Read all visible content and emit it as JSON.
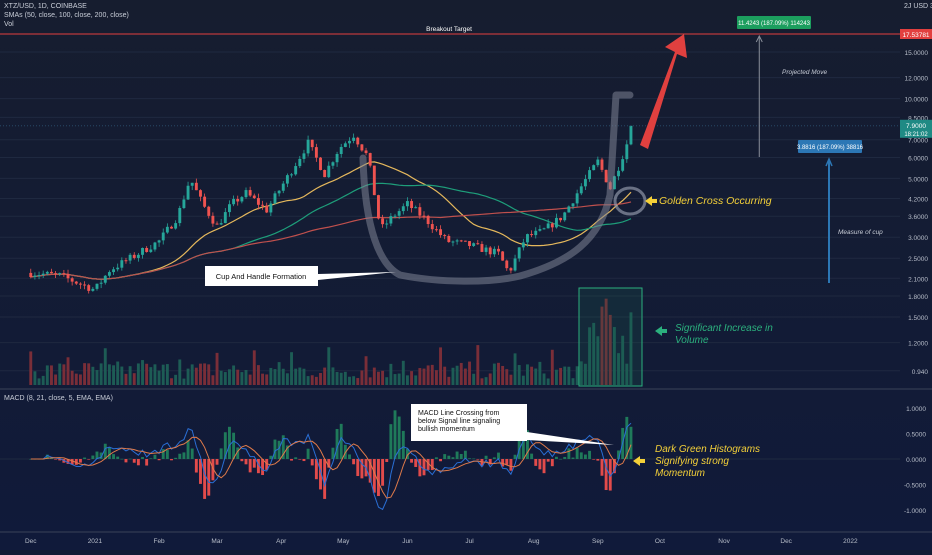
{
  "header": {
    "symbol_line": "XTZ/USD, 1D, COINBASE",
    "sma_line": "SMAs (50, close, 100, close, 200, close)",
    "vol_line": "Vol",
    "corner_label": "2J USD 3"
  },
  "macd_header": "MACD (8, 21, close, 5, EMA, EMA)",
  "chart_data": {
    "type": "candlestick",
    "price_axis": {
      "scale": "log",
      "ticks": [
        "15.0000",
        "12.0000",
        "10.0000",
        "8.5000",
        "7.0000",
        "6.0000",
        "5.0000",
        "4.2000",
        "3.6000",
        "3.0000",
        "2.5000",
        "2.1000",
        "1.8000",
        "1.5000",
        "1.2000",
        "0.940"
      ],
      "last_price": "7.9000",
      "countdown": "18:21:02",
      "target_label": "17.53781"
    },
    "macd_axis": {
      "ticks": [
        "1.0000",
        "0.5000",
        "0.0000",
        "-0.5000",
        "-1.0000"
      ]
    },
    "x_ticks": [
      "Dec",
      "2021",
      "Feb",
      "Mar",
      "Apr",
      "May",
      "Jun",
      "Jul",
      "Aug",
      "Sep",
      "Oct",
      "Nov",
      "Dec",
      "2022"
    ],
    "price_path": [
      [
        "2020-12-01",
        2.2
      ],
      [
        "2020-12-15",
        2.15
      ],
      [
        "2021-01-01",
        1.9
      ],
      [
        "2021-01-08",
        2.25
      ],
      [
        "2021-01-20",
        2.55
      ],
      [
        "2021-02-01",
        2.9
      ],
      [
        "2021-02-10",
        3.6
      ],
      [
        "2021-02-16",
        5.0
      ],
      [
        "2021-02-22",
        4.0
      ],
      [
        "2021-03-01",
        3.3
      ],
      [
        "2021-03-08",
        4.0
      ],
      [
        "2021-03-15",
        4.4
      ],
      [
        "2021-03-25",
        3.8
      ],
      [
        "2021-04-05",
        5.2
      ],
      [
        "2021-04-14",
        6.8
      ],
      [
        "2021-04-22",
        5.2
      ],
      [
        "2021-04-29",
        6.5
      ],
      [
        "2021-05-06",
        7.3
      ],
      [
        "2021-05-13",
        6.0
      ],
      [
        "2021-05-19",
        3.2
      ],
      [
        "2021-05-25",
        3.6
      ],
      [
        "2021-06-01",
        4.0
      ],
      [
        "2021-06-10",
        3.5
      ],
      [
        "2021-06-20",
        2.9
      ],
      [
        "2021-07-01",
        2.8
      ],
      [
        "2021-07-15",
        2.6
      ],
      [
        "2021-07-20",
        2.2
      ],
      [
        "2021-07-28",
        3.0
      ],
      [
        "2021-08-05",
        3.15
      ],
      [
        "2021-08-15",
        3.6
      ],
      [
        "2021-08-25",
        4.8
      ],
      [
        "2021-09-01",
        5.8
      ],
      [
        "2021-09-07",
        4.6
      ],
      [
        "2021-09-12",
        5.8
      ],
      [
        "2021-09-18",
        7.9
      ]
    ],
    "series": [
      {
        "name": "SMA 50",
        "color": "#e5b85c"
      },
      {
        "name": "SMA 100",
        "color": "#1e9e7a"
      },
      {
        "name": "SMA 200",
        "color": "#c0504d"
      }
    ],
    "colors": {
      "up": "#26a69a",
      "down": "#ef5350",
      "macd": "#2a6fd6",
      "signal": "#e07a4a",
      "hist_up": "#1f7a5a",
      "hist_down": "#e24b4b"
    }
  },
  "annotations": {
    "breakout_target": "Breakout Target",
    "target_badge": "11.4243 (187.09%) 114243",
    "projected_move": "Projected Move",
    "cup_badge": "3.8816 (187.09%) 38816",
    "measure_of_cup": "Measure of cup",
    "cup_handle": "Cup And Handle Formation",
    "golden_cross": "Golden Cross Occurring",
    "significant_volume_1": "Significant Increase in",
    "significant_volume_2": "Volume",
    "macd_crossing": [
      "MACD Line Crossing from",
      "below Signal line signaling",
      "bullish momentum"
    ],
    "dark_green": [
      "Dark Green Histograms",
      "Signifying strong",
      "Momentum"
    ]
  }
}
